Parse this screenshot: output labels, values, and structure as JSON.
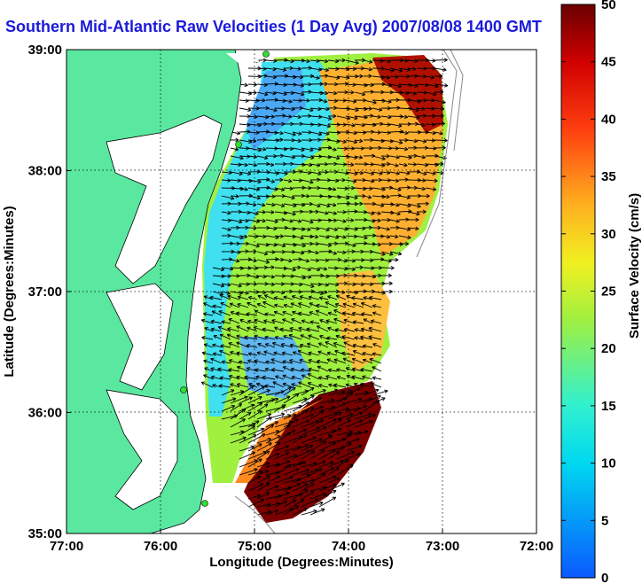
{
  "title": "Southern Mid-Atlantic Raw Velocities (1 Day Avg) 2007/08/08 1400 GMT",
  "axes": {
    "xlabel": "Longitude (Degrees:Minutes)",
    "ylabel": "Latitude (Degrees:Minutes)",
    "x_ticks": [
      "77:00",
      "76:00",
      "75:00",
      "74:00",
      "73:00",
      "72:00"
    ],
    "y_ticks": [
      "39:00",
      "38:00",
      "37:00",
      "36:00",
      "35:00"
    ]
  },
  "colorbar": {
    "label": "Surface Velocity (cm/s)",
    "ticks": [
      "0",
      "5",
      "10",
      "15",
      "20",
      "25",
      "30",
      "35",
      "40",
      "45",
      "50"
    ],
    "range": [
      0,
      50
    ]
  },
  "map": {
    "lon_range": [
      -77,
      -72
    ],
    "lat_range": [
      35,
      39
    ],
    "land_color": "#5ae8a0",
    "arrow_color": "#000000"
  },
  "colors": {
    "title": "#1a1adc"
  }
}
